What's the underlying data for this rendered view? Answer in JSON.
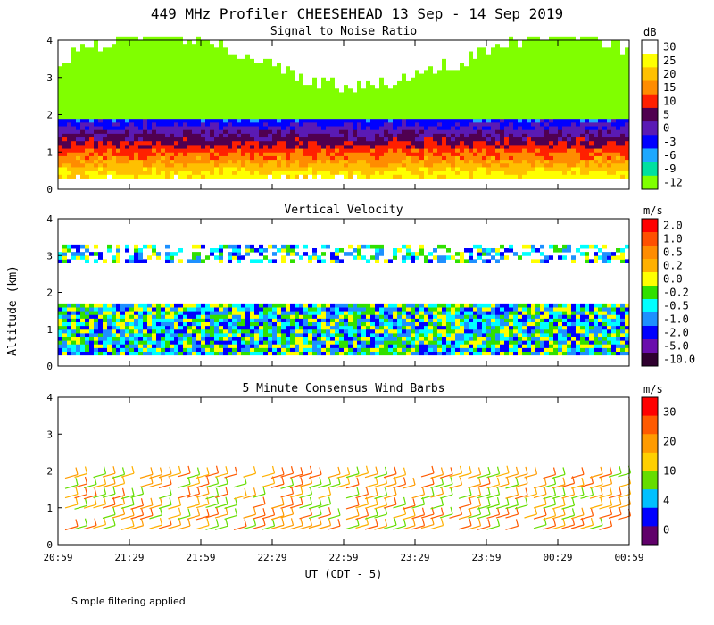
{
  "title": "449 MHz Profiler CHEESEHEAD 13 Sep - 14 Sep 2019",
  "ylabel": "Altitude (km)",
  "xlabel": "UT (CDT - 5)",
  "footnote": "Simple filtering applied",
  "x_ticks": [
    "20:59",
    "21:29",
    "21:59",
    "22:29",
    "22:59",
    "23:29",
    "23:59",
    "00:29",
    "00:59"
  ],
  "y_ticks": [
    "0",
    "1",
    "2",
    "3",
    "4"
  ],
  "chart_data": [
    {
      "type": "heatmap",
      "title": "Signal to Noise Ratio",
      "units": "dB",
      "ylim": [
        0,
        4
      ],
      "colorbar": {
        "labels": [
          "30",
          "25",
          "20",
          "15",
          "10",
          "5",
          "0",
          "-3",
          "-6",
          "-9",
          "-12"
        ],
        "colors": [
          "#ffffff",
          "#ffff00",
          "#ffc000",
          "#ff8c00",
          "#ff2000",
          "#500050",
          "#5a1ab4",
          "#0000ff",
          "#1ea8ff",
          "#00e0a0",
          "#80ff00"
        ]
      }
    },
    {
      "type": "heatmap",
      "title": "Vertical Velocity",
      "units": "m/s",
      "ylim": [
        0,
        4
      ],
      "colorbar": {
        "labels": [
          "2.0",
          "1.0",
          "0.5",
          "0.2",
          "0.0",
          "-0.2",
          "-0.5",
          "-1.0",
          "-2.0",
          "-5.0",
          "-10.0"
        ],
        "colors": [
          "#ff0000",
          "#ff5000",
          "#ff8c00",
          "#ffb000",
          "#ffff00",
          "#30e000",
          "#00ffff",
          "#1e90ff",
          "#0000ff",
          "#6a0dad",
          "#300030"
        ]
      }
    },
    {
      "type": "scatter",
      "title": "5 Minute Consensus Wind Barbs",
      "units": "m/s",
      "ylim": [
        0,
        4
      ],
      "colorbar": {
        "labels": [
          "30",
          "20",
          "10",
          "4",
          "0"
        ],
        "colors": [
          "#ff0000",
          "#ff5a00",
          "#ff9b00",
          "#ffd000",
          "#66dd00",
          "#00c0ff",
          "#0000ff",
          "#60006a"
        ]
      }
    }
  ]
}
